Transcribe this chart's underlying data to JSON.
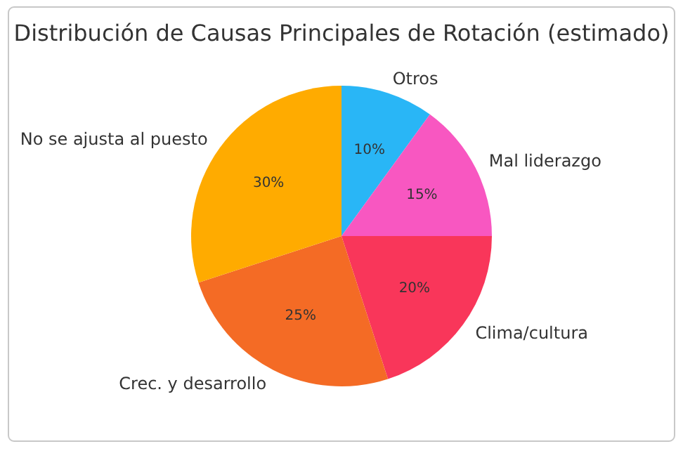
{
  "chart_data": {
    "type": "pie",
    "title": "Distribución de Causas Principales de Rotación (estimado)",
    "categories": [
      "Otros",
      "Mal liderazgo",
      "Clima/cultura",
      "Crec. y desarrollo",
      "No se ajusta al puesto"
    ],
    "values": [
      10,
      15,
      20,
      25,
      30
    ],
    "colors": [
      "#29b6f6",
      "#f857c1",
      "#f9365a",
      "#f46b25",
      "#ffab00"
    ],
    "value_labels": [
      "10%",
      "15%",
      "20%",
      "25%",
      "30%"
    ]
  }
}
